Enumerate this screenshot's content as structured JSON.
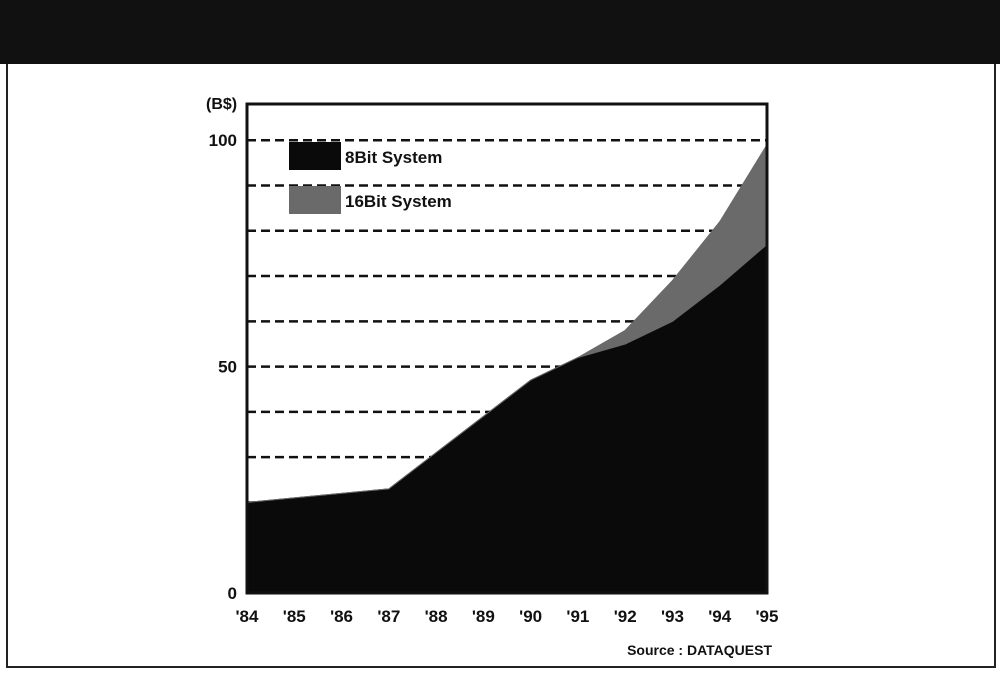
{
  "chart_data": {
    "type": "area",
    "y_unit": "(B$)",
    "categories": [
      "'84",
      "'85",
      "'86",
      "'87",
      "'88",
      "'89",
      "'90",
      "'91",
      "'92",
      "'93",
      "'94",
      "'95"
    ],
    "series": [
      {
        "name": "8Bit System",
        "color": "#0a0a0a",
        "values": [
          20,
          21,
          22,
          23,
          31,
          39,
          47,
          52,
          55,
          60,
          68,
          77
        ]
      },
      {
        "name": "16Bit System",
        "color": "#6a6a6a",
        "values": [
          0,
          0,
          0,
          0,
          0,
          0,
          0,
          0,
          3,
          9,
          14,
          22
        ]
      }
    ],
    "y_ticks": [
      0,
      50,
      100
    ],
    "ylim": [
      0,
      100
    ],
    "grid": "dashed horizontal lines",
    "legend": "top-left inside plot",
    "source": "Source : DATAQUEST"
  }
}
